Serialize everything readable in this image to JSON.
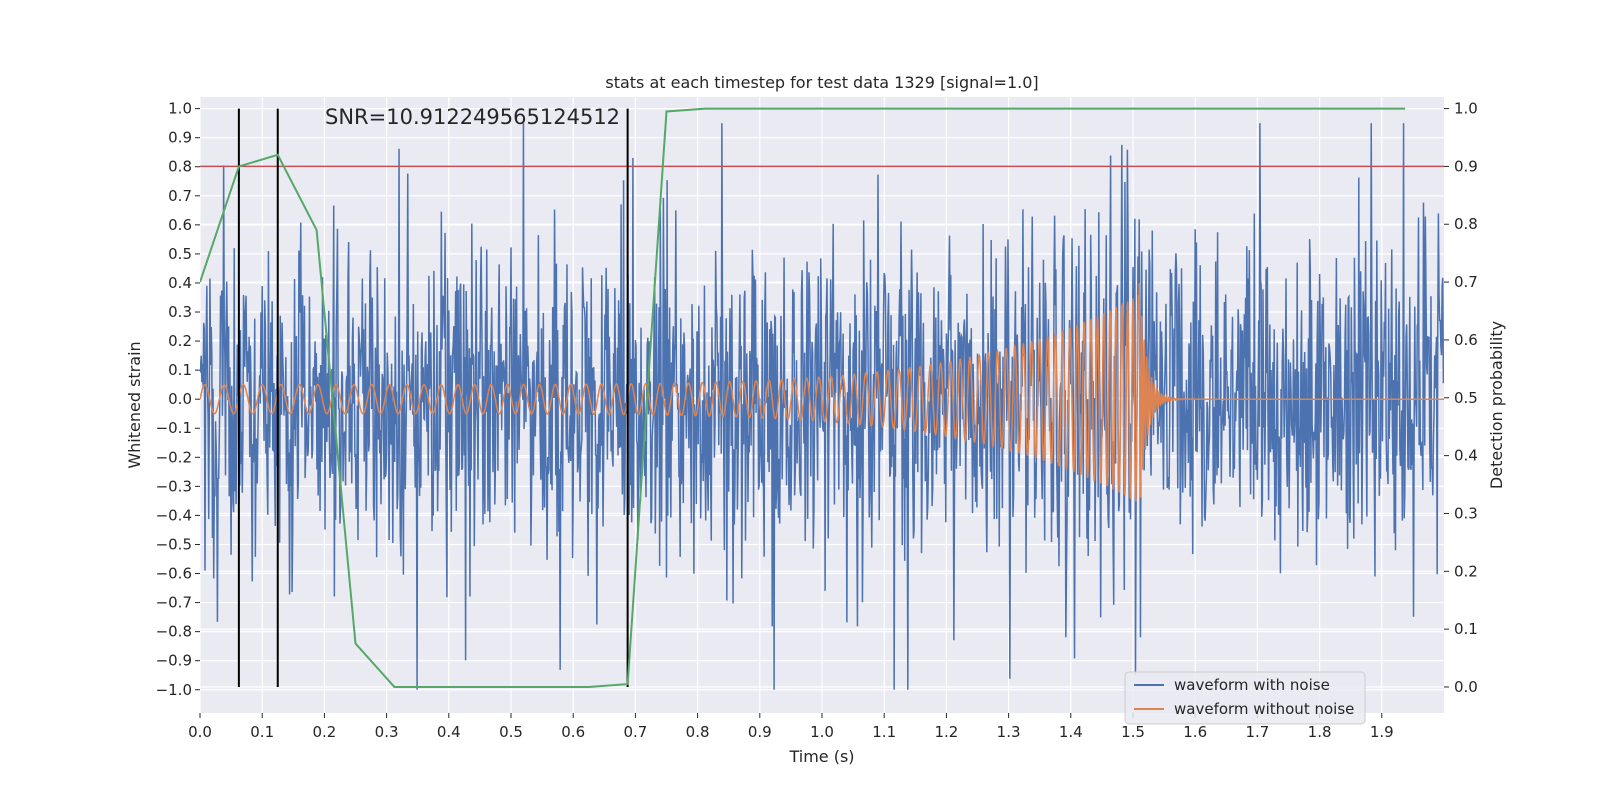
{
  "chart_data": {
    "type": "line",
    "title": "stats at each timestep for test data 1329 [signal=1.0]",
    "annotation": "SNR=10.912249565124512",
    "xlabel": "Time (s)",
    "ylabel_left": "Whitened strain",
    "ylabel_right": "Detection probability",
    "xlim": [
      0.0,
      2.0
    ],
    "ylim_left": [
      -1.08,
      1.04
    ],
    "ylim_right": [
      -0.045,
      1.02
    ],
    "x_ticks": [
      "0.0",
      "0.1",
      "0.2",
      "0.3",
      "0.4",
      "0.5",
      "0.6",
      "0.7",
      "0.8",
      "0.9",
      "1.0",
      "1.1",
      "1.2",
      "1.3",
      "1.4",
      "1.5",
      "1.6",
      "1.7",
      "1.8",
      "1.9"
    ],
    "x_tick_values": [
      0,
      0.1,
      0.2,
      0.3,
      0.4,
      0.5,
      0.6,
      0.7,
      0.8,
      0.9,
      1.0,
      1.1,
      1.2,
      1.3,
      1.4,
      1.5,
      1.6,
      1.7,
      1.8,
      1.9
    ],
    "y_left_ticks": [
      "1.0",
      "0.9",
      "0.8",
      "0.7",
      "0.6",
      "0.5",
      "0.4",
      "0.3",
      "0.2",
      "0.1",
      "0.0",
      "-0.1",
      "-0.2",
      "-0.3",
      "-0.4",
      "-0.5",
      "-0.6",
      "-0.7",
      "-0.8",
      "-0.9",
      "-1.0"
    ],
    "y_left_tick_values": [
      1.0,
      0.9,
      0.8,
      0.7,
      0.6,
      0.5,
      0.4,
      0.3,
      0.2,
      0.1,
      0.0,
      -0.1,
      -0.2,
      -0.3,
      -0.4,
      -0.5,
      -0.6,
      -0.7,
      -0.8,
      -0.9,
      -1.0
    ],
    "y_right_ticks": [
      "1.0",
      "0.9",
      "0.8",
      "0.7",
      "0.6",
      "0.5",
      "0.4",
      "0.3",
      "0.2",
      "0.1",
      "0.0"
    ],
    "y_right_tick_values": [
      1.0,
      0.9,
      0.8,
      0.7,
      0.6,
      0.5,
      0.4,
      0.3,
      0.2,
      0.1,
      0.0
    ],
    "series": [
      {
        "name": "waveform with noise",
        "axis": "left",
        "color": "#4c72b0",
        "kind": "noise",
        "duration_s": 2.0,
        "sample_count": 2000,
        "approx_range": [
          -1.0,
          0.95
        ]
      },
      {
        "name": "waveform without noise",
        "axis": "left",
        "color": "#dd8452",
        "kind": "chirp",
        "duration_s": 2.0,
        "merger_time_s": 1.51,
        "start_frequency_hz": 32,
        "initial_amplitude": 0.05,
        "peak_amplitude": 0.36,
        "ringdown_min": -0.4
      },
      {
        "name": "detection probability",
        "axis": "right",
        "color": "#55a868",
        "in_legend": false,
        "x": [
          0.0,
          0.0625,
          0.125,
          0.1875,
          0.25,
          0.3125,
          0.375,
          0.625,
          0.6875,
          0.75,
          0.8125,
          1.9375
        ],
        "values": [
          0.7,
          0.9,
          0.92,
          0.79,
          0.075,
          0.0,
          0.0,
          0.0,
          0.005,
          0.995,
          1.0,
          1.0
        ]
      }
    ],
    "threshold": {
      "value": 0.9,
      "axis": "right",
      "color": "#c44e52"
    },
    "vertical_markers": {
      "x": [
        0.0625,
        0.125,
        0.6875
      ],
      "color": "#000000"
    },
    "legend": {
      "position": "bottom-right",
      "entries": [
        {
          "label": "waveform with noise",
          "color": "#4c72b0"
        },
        {
          "label": "waveform without noise",
          "color": "#dd8452"
        }
      ]
    },
    "grid": true,
    "background": "#eaeaf2"
  }
}
